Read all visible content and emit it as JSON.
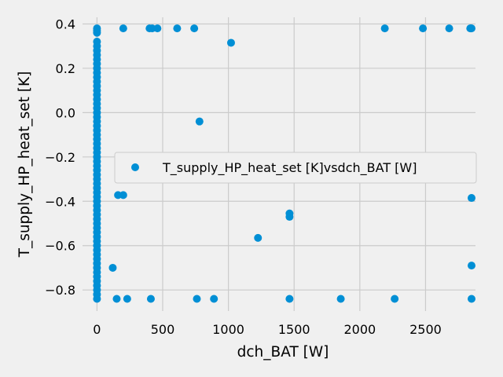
{
  "chart_data": {
    "type": "scatter",
    "xlabel": "dch_BAT [W]",
    "ylabel": "T_supply_HP_heat_set [K]",
    "xlim": [
      -110,
      2880
    ],
    "ylim": [
      -0.895,
      0.43
    ],
    "xticks": [
      0,
      500,
      1000,
      1500,
      2000,
      2500
    ],
    "yticks": [
      -0.8,
      -0.6,
      -0.4,
      -0.2,
      0.0,
      0.2,
      0.4
    ],
    "ytick_labels": [
      "−0.8",
      "−0.6",
      "−0.4",
      "−0.2",
      "0.0",
      "0.2",
      "0.4"
    ],
    "grid": true,
    "legend_position": "center-right",
    "colors": {
      "background": "#f0f0f0",
      "grid": "#cbcbcb",
      "marker": "#008fd5"
    },
    "series": [
      {
        "name": "T_supply_HP_heat_set [K]vsdch_BAT [W]",
        "points": [
          [
            0,
            0.38
          ],
          [
            0,
            0.37
          ],
          [
            0,
            0.36
          ],
          [
            0,
            0.32
          ],
          [
            0,
            0.3
          ],
          [
            0,
            0.28
          ],
          [
            0,
            0.26
          ],
          [
            0,
            0.24
          ],
          [
            0,
            0.22
          ],
          [
            0,
            0.2
          ],
          [
            0,
            0.18
          ],
          [
            0,
            0.16
          ],
          [
            0,
            0.14
          ],
          [
            0,
            0.12
          ],
          [
            0,
            0.1
          ],
          [
            0,
            0.08
          ],
          [
            0,
            0.06
          ],
          [
            0,
            0.04
          ],
          [
            0,
            0.02
          ],
          [
            0,
            0.0
          ],
          [
            0,
            -0.02
          ],
          [
            0,
            -0.04
          ],
          [
            0,
            -0.06
          ],
          [
            0,
            -0.08
          ],
          [
            0,
            -0.1
          ],
          [
            0,
            -0.12
          ],
          [
            0,
            -0.14
          ],
          [
            0,
            -0.16
          ],
          [
            0,
            -0.18
          ],
          [
            0,
            -0.2
          ],
          [
            0,
            -0.22
          ],
          [
            0,
            -0.24
          ],
          [
            0,
            -0.26
          ],
          [
            0,
            -0.28
          ],
          [
            0,
            -0.3
          ],
          [
            0,
            -0.32
          ],
          [
            0,
            -0.34
          ],
          [
            0,
            -0.36
          ],
          [
            0,
            -0.38
          ],
          [
            0,
            -0.4
          ],
          [
            0,
            -0.42
          ],
          [
            0,
            -0.44
          ],
          [
            0,
            -0.46
          ],
          [
            0,
            -0.48
          ],
          [
            0,
            -0.5
          ],
          [
            0,
            -0.52
          ],
          [
            0,
            -0.54
          ],
          [
            0,
            -0.56
          ],
          [
            0,
            -0.58
          ],
          [
            0,
            -0.6
          ],
          [
            0,
            -0.62
          ],
          [
            0,
            -0.64
          ],
          [
            0,
            -0.66
          ],
          [
            0,
            -0.68
          ],
          [
            0,
            -0.7
          ],
          [
            0,
            -0.72
          ],
          [
            0,
            -0.74
          ],
          [
            0,
            -0.76
          ],
          [
            0,
            -0.78
          ],
          [
            0,
            -0.8
          ],
          [
            0,
            -0.82
          ],
          [
            0,
            -0.84
          ],
          [
            200,
            0.38
          ],
          [
            400,
            0.38
          ],
          [
            420,
            0.38
          ],
          [
            460,
            0.38
          ],
          [
            610,
            0.38
          ],
          [
            740,
            0.38
          ],
          [
            1020,
            0.315
          ],
          [
            2190,
            0.38
          ],
          [
            2480,
            0.38
          ],
          [
            2680,
            0.38
          ],
          [
            2840,
            0.38
          ],
          [
            2845,
            0.38
          ],
          [
            2850,
            0.38
          ],
          [
            780,
            -0.04
          ],
          [
            160,
            -0.372
          ],
          [
            200,
            -0.372
          ],
          [
            1465,
            -0.455
          ],
          [
            1465,
            -0.47
          ],
          [
            1225,
            -0.565
          ],
          [
            120,
            -0.7
          ],
          [
            2850,
            -0.385
          ],
          [
            2850,
            -0.69
          ],
          [
            150,
            -0.84
          ],
          [
            230,
            -0.84
          ],
          [
            410,
            -0.84
          ],
          [
            760,
            -0.84
          ],
          [
            890,
            -0.84
          ],
          [
            1465,
            -0.84
          ],
          [
            1855,
            -0.84
          ],
          [
            2265,
            -0.84
          ],
          [
            2850,
            -0.84
          ]
        ]
      }
    ]
  }
}
